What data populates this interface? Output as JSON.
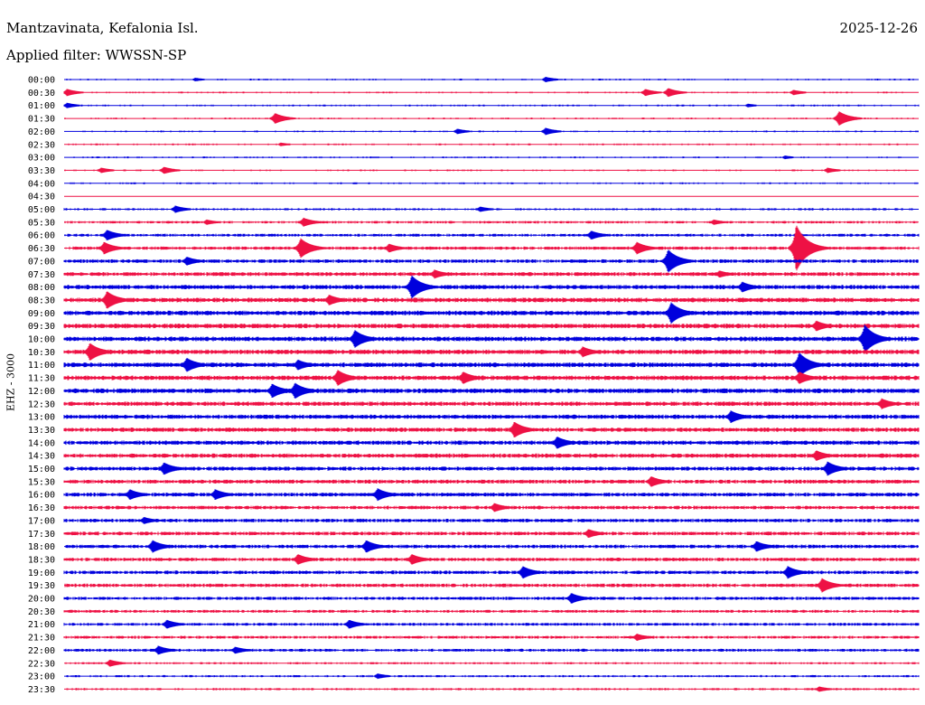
{
  "header": {
    "station": "Mantzavinata, Kefalonia Isl.",
    "date": "2025-12-26",
    "filter": "Applied filter: WWSSN-SP"
  },
  "channel_label": "EHZ - 3000",
  "colors": {
    "even_row": "#0000dd",
    "odd_row": "#ee1144"
  },
  "chart_data": {
    "type": "line",
    "title": "Mantzavinata, Kefalonia Isl.",
    "xlabel": "",
    "ylabel": "EHZ - 3000",
    "row_labels": [
      "00:00",
      "00:30",
      "01:00",
      "01:30",
      "02:00",
      "02:30",
      "03:00",
      "03:30",
      "04:00",
      "04:30",
      "05:00",
      "05:30",
      "06:00",
      "06:30",
      "07:00",
      "07:30",
      "08:00",
      "08:30",
      "09:00",
      "09:30",
      "10:00",
      "10:30",
      "11:00",
      "11:30",
      "12:00",
      "12:30",
      "13:00",
      "13:30",
      "14:00",
      "14:30",
      "15:00",
      "15:30",
      "16:00",
      "16:30",
      "17:00",
      "17:30",
      "18:00",
      "18:30",
      "19:00",
      "19:30",
      "20:00",
      "20:30",
      "21:00",
      "21:30",
      "22:00",
      "22:30",
      "23:00",
      "23:30"
    ],
    "row_span_minutes": 30,
    "noise_level": [
      1.0,
      1.0,
      1.0,
      1.0,
      1.0,
      1.0,
      1.0,
      1.0,
      1.0,
      0.6,
      1.2,
      1.4,
      1.6,
      1.8,
      2.0,
      2.2,
      2.4,
      2.6,
      2.6,
      2.6,
      2.6,
      2.6,
      2.6,
      2.6,
      2.6,
      2.4,
      2.4,
      2.4,
      2.4,
      2.4,
      2.2,
      2.2,
      2.2,
      2.0,
      2.0,
      2.0,
      2.0,
      2.0,
      2.0,
      2.0,
      1.8,
      1.6,
      1.6,
      1.6,
      1.6,
      1.2,
      1.2,
      1.2
    ],
    "events": [
      {
        "row": 0,
        "minute": 4.6,
        "amplitude": 2
      },
      {
        "row": 0,
        "minute": 16.9,
        "amplitude": 3
      },
      {
        "row": 1,
        "minute": 0.1,
        "amplitude": 4
      },
      {
        "row": 1,
        "minute": 20.4,
        "amplitude": 4
      },
      {
        "row": 1,
        "minute": 21.2,
        "amplitude": 5
      },
      {
        "row": 1,
        "minute": 25.6,
        "amplitude": 3
      },
      {
        "row": 2,
        "minute": 0.1,
        "amplitude": 3
      },
      {
        "row": 2,
        "minute": 24.0,
        "amplitude": 2
      },
      {
        "row": 3,
        "minute": 7.4,
        "amplitude": 6
      },
      {
        "row": 3,
        "minute": 27.2,
        "amplitude": 8
      },
      {
        "row": 4,
        "minute": 13.8,
        "amplitude": 3
      },
      {
        "row": 4,
        "minute": 16.9,
        "amplitude": 4
      },
      {
        "row": 5,
        "minute": 7.6,
        "amplitude": 2
      },
      {
        "row": 6,
        "minute": 25.3,
        "amplitude": 2
      },
      {
        "row": 7,
        "minute": 1.3,
        "amplitude": 3
      },
      {
        "row": 7,
        "minute": 3.5,
        "amplitude": 4
      },
      {
        "row": 7,
        "minute": 26.8,
        "amplitude": 3
      },
      {
        "row": 10,
        "minute": 3.9,
        "amplitude": 4
      },
      {
        "row": 10,
        "minute": 14.6,
        "amplitude": 3
      },
      {
        "row": 11,
        "minute": 5.0,
        "amplitude": 3
      },
      {
        "row": 11,
        "minute": 8.4,
        "amplitude": 5
      },
      {
        "row": 11,
        "minute": 22.8,
        "amplitude": 3
      },
      {
        "row": 12,
        "minute": 1.5,
        "amplitude": 6
      },
      {
        "row": 12,
        "minute": 18.5,
        "amplitude": 5
      },
      {
        "row": 13,
        "minute": 1.4,
        "amplitude": 7
      },
      {
        "row": 13,
        "minute": 8.3,
        "amplitude": 11
      },
      {
        "row": 13,
        "minute": 11.4,
        "amplitude": 5
      },
      {
        "row": 13,
        "minute": 20.1,
        "amplitude": 7
      },
      {
        "row": 13,
        "minute": 25.7,
        "amplitude": 26
      },
      {
        "row": 14,
        "minute": 4.3,
        "amplitude": 5
      },
      {
        "row": 14,
        "minute": 21.2,
        "amplitude": 13
      },
      {
        "row": 15,
        "minute": 13.0,
        "amplitude": 5
      },
      {
        "row": 15,
        "minute": 23.0,
        "amplitude": 4
      },
      {
        "row": 16,
        "minute": 12.2,
        "amplitude": 13
      },
      {
        "row": 16,
        "minute": 23.8,
        "amplitude": 6
      },
      {
        "row": 17,
        "minute": 1.5,
        "amplitude": 10
      },
      {
        "row": 17,
        "minute": 9.3,
        "amplitude": 6
      },
      {
        "row": 18,
        "minute": 21.3,
        "amplitude": 12
      },
      {
        "row": 19,
        "minute": 26.4,
        "amplitude": 6
      },
      {
        "row": 20,
        "minute": 10.2,
        "amplitude": 10
      },
      {
        "row": 20,
        "minute": 28.1,
        "amplitude": 16
      },
      {
        "row": 21,
        "minute": 0.9,
        "amplitude": 10
      },
      {
        "row": 21,
        "minute": 18.2,
        "amplitude": 6
      },
      {
        "row": 22,
        "minute": 4.3,
        "amplitude": 8
      },
      {
        "row": 22,
        "minute": 8.2,
        "amplitude": 6
      },
      {
        "row": 22,
        "minute": 25.8,
        "amplitude": 14
      },
      {
        "row": 23,
        "minute": 9.6,
        "amplitude": 9
      },
      {
        "row": 23,
        "minute": 14.0,
        "amplitude": 7
      },
      {
        "row": 23,
        "minute": 25.8,
        "amplitude": 7
      },
      {
        "row": 24,
        "minute": 7.3,
        "amplitude": 8
      },
      {
        "row": 24,
        "minute": 8.1,
        "amplitude": 9
      },
      {
        "row": 25,
        "minute": 28.7,
        "amplitude": 6
      },
      {
        "row": 26,
        "minute": 23.4,
        "amplitude": 7
      },
      {
        "row": 27,
        "minute": 15.8,
        "amplitude": 9
      },
      {
        "row": 28,
        "minute": 17.3,
        "amplitude": 7
      },
      {
        "row": 29,
        "minute": 26.4,
        "amplitude": 6
      },
      {
        "row": 30,
        "minute": 3.5,
        "amplitude": 7
      },
      {
        "row": 30,
        "minute": 26.8,
        "amplitude": 8
      },
      {
        "row": 31,
        "minute": 20.6,
        "amplitude": 6
      },
      {
        "row": 32,
        "minute": 2.3,
        "amplitude": 6
      },
      {
        "row": 32,
        "minute": 5.3,
        "amplitude": 6
      },
      {
        "row": 32,
        "minute": 11.0,
        "amplitude": 7
      },
      {
        "row": 33,
        "minute": 15.1,
        "amplitude": 5
      },
      {
        "row": 34,
        "minute": 2.8,
        "amplitude": 4
      },
      {
        "row": 35,
        "minute": 18.4,
        "amplitude": 5
      },
      {
        "row": 36,
        "minute": 3.1,
        "amplitude": 7
      },
      {
        "row": 36,
        "minute": 10.6,
        "amplitude": 7
      },
      {
        "row": 36,
        "minute": 24.3,
        "amplitude": 6
      },
      {
        "row": 37,
        "minute": 8.2,
        "amplitude": 6
      },
      {
        "row": 37,
        "minute": 12.2,
        "amplitude": 6
      },
      {
        "row": 38,
        "minute": 16.1,
        "amplitude": 7
      },
      {
        "row": 38,
        "minute": 25.4,
        "amplitude": 7
      },
      {
        "row": 39,
        "minute": 26.6,
        "amplitude": 8
      },
      {
        "row": 40,
        "minute": 17.8,
        "amplitude": 6
      },
      {
        "row": 42,
        "minute": 3.6,
        "amplitude": 5
      },
      {
        "row": 42,
        "minute": 10.0,
        "amplitude": 5
      },
      {
        "row": 43,
        "minute": 20.1,
        "amplitude": 4
      },
      {
        "row": 44,
        "minute": 3.3,
        "amplitude": 5
      },
      {
        "row": 44,
        "minute": 6.0,
        "amplitude": 4
      },
      {
        "row": 45,
        "minute": 1.6,
        "amplitude": 4
      },
      {
        "row": 46,
        "minute": 11.0,
        "amplitude": 3
      },
      {
        "row": 47,
        "minute": 26.5,
        "amplitude": 3
      }
    ]
  }
}
